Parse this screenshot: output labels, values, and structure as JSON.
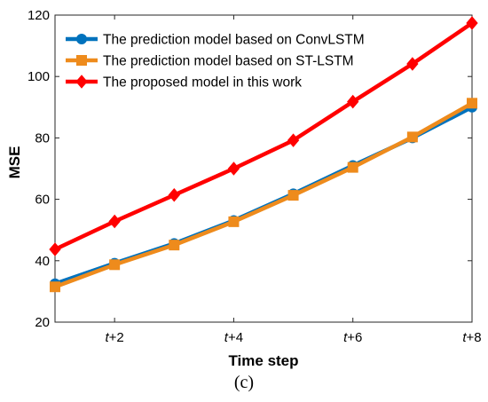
{
  "chart_data": {
    "type": "line",
    "x": [
      1,
      2,
      3,
      4,
      5,
      6,
      7,
      8
    ],
    "x_tick_values": [
      2,
      4,
      6,
      8
    ],
    "x_tick_labels": [
      "t+2",
      "t+4",
      "t+6",
      "t+8"
    ],
    "xlabel": "Time step",
    "ylabel": "MSE",
    "xlim": [
      1,
      8
    ],
    "ylim": [
      20,
      120
    ],
    "y_ticks": [
      20,
      40,
      60,
      80,
      100,
      120
    ],
    "grid": false,
    "legend_position": "top-left",
    "series": [
      {
        "name": "The prediction model based on ConvLSTM",
        "color": "#0072BD",
        "marker": "circle",
        "values": [
          32.5,
          39.2,
          45.6,
          53.1,
          61.8,
          71.0,
          80.0,
          90.0
        ]
      },
      {
        "name": "The prediction model based on ST-LSTM",
        "color": "#EE8B1C",
        "marker": "square",
        "values": [
          31.5,
          38.7,
          45.1,
          52.7,
          61.3,
          70.4,
          80.3,
          91.3
        ]
      },
      {
        "name": "The proposed model in this work",
        "color": "#FF0000",
        "marker": "diamond",
        "values": [
          43.7,
          52.8,
          61.4,
          70.0,
          79.2,
          91.8,
          104.1,
          117.4
        ]
      }
    ]
  },
  "panel_label": "(c)"
}
